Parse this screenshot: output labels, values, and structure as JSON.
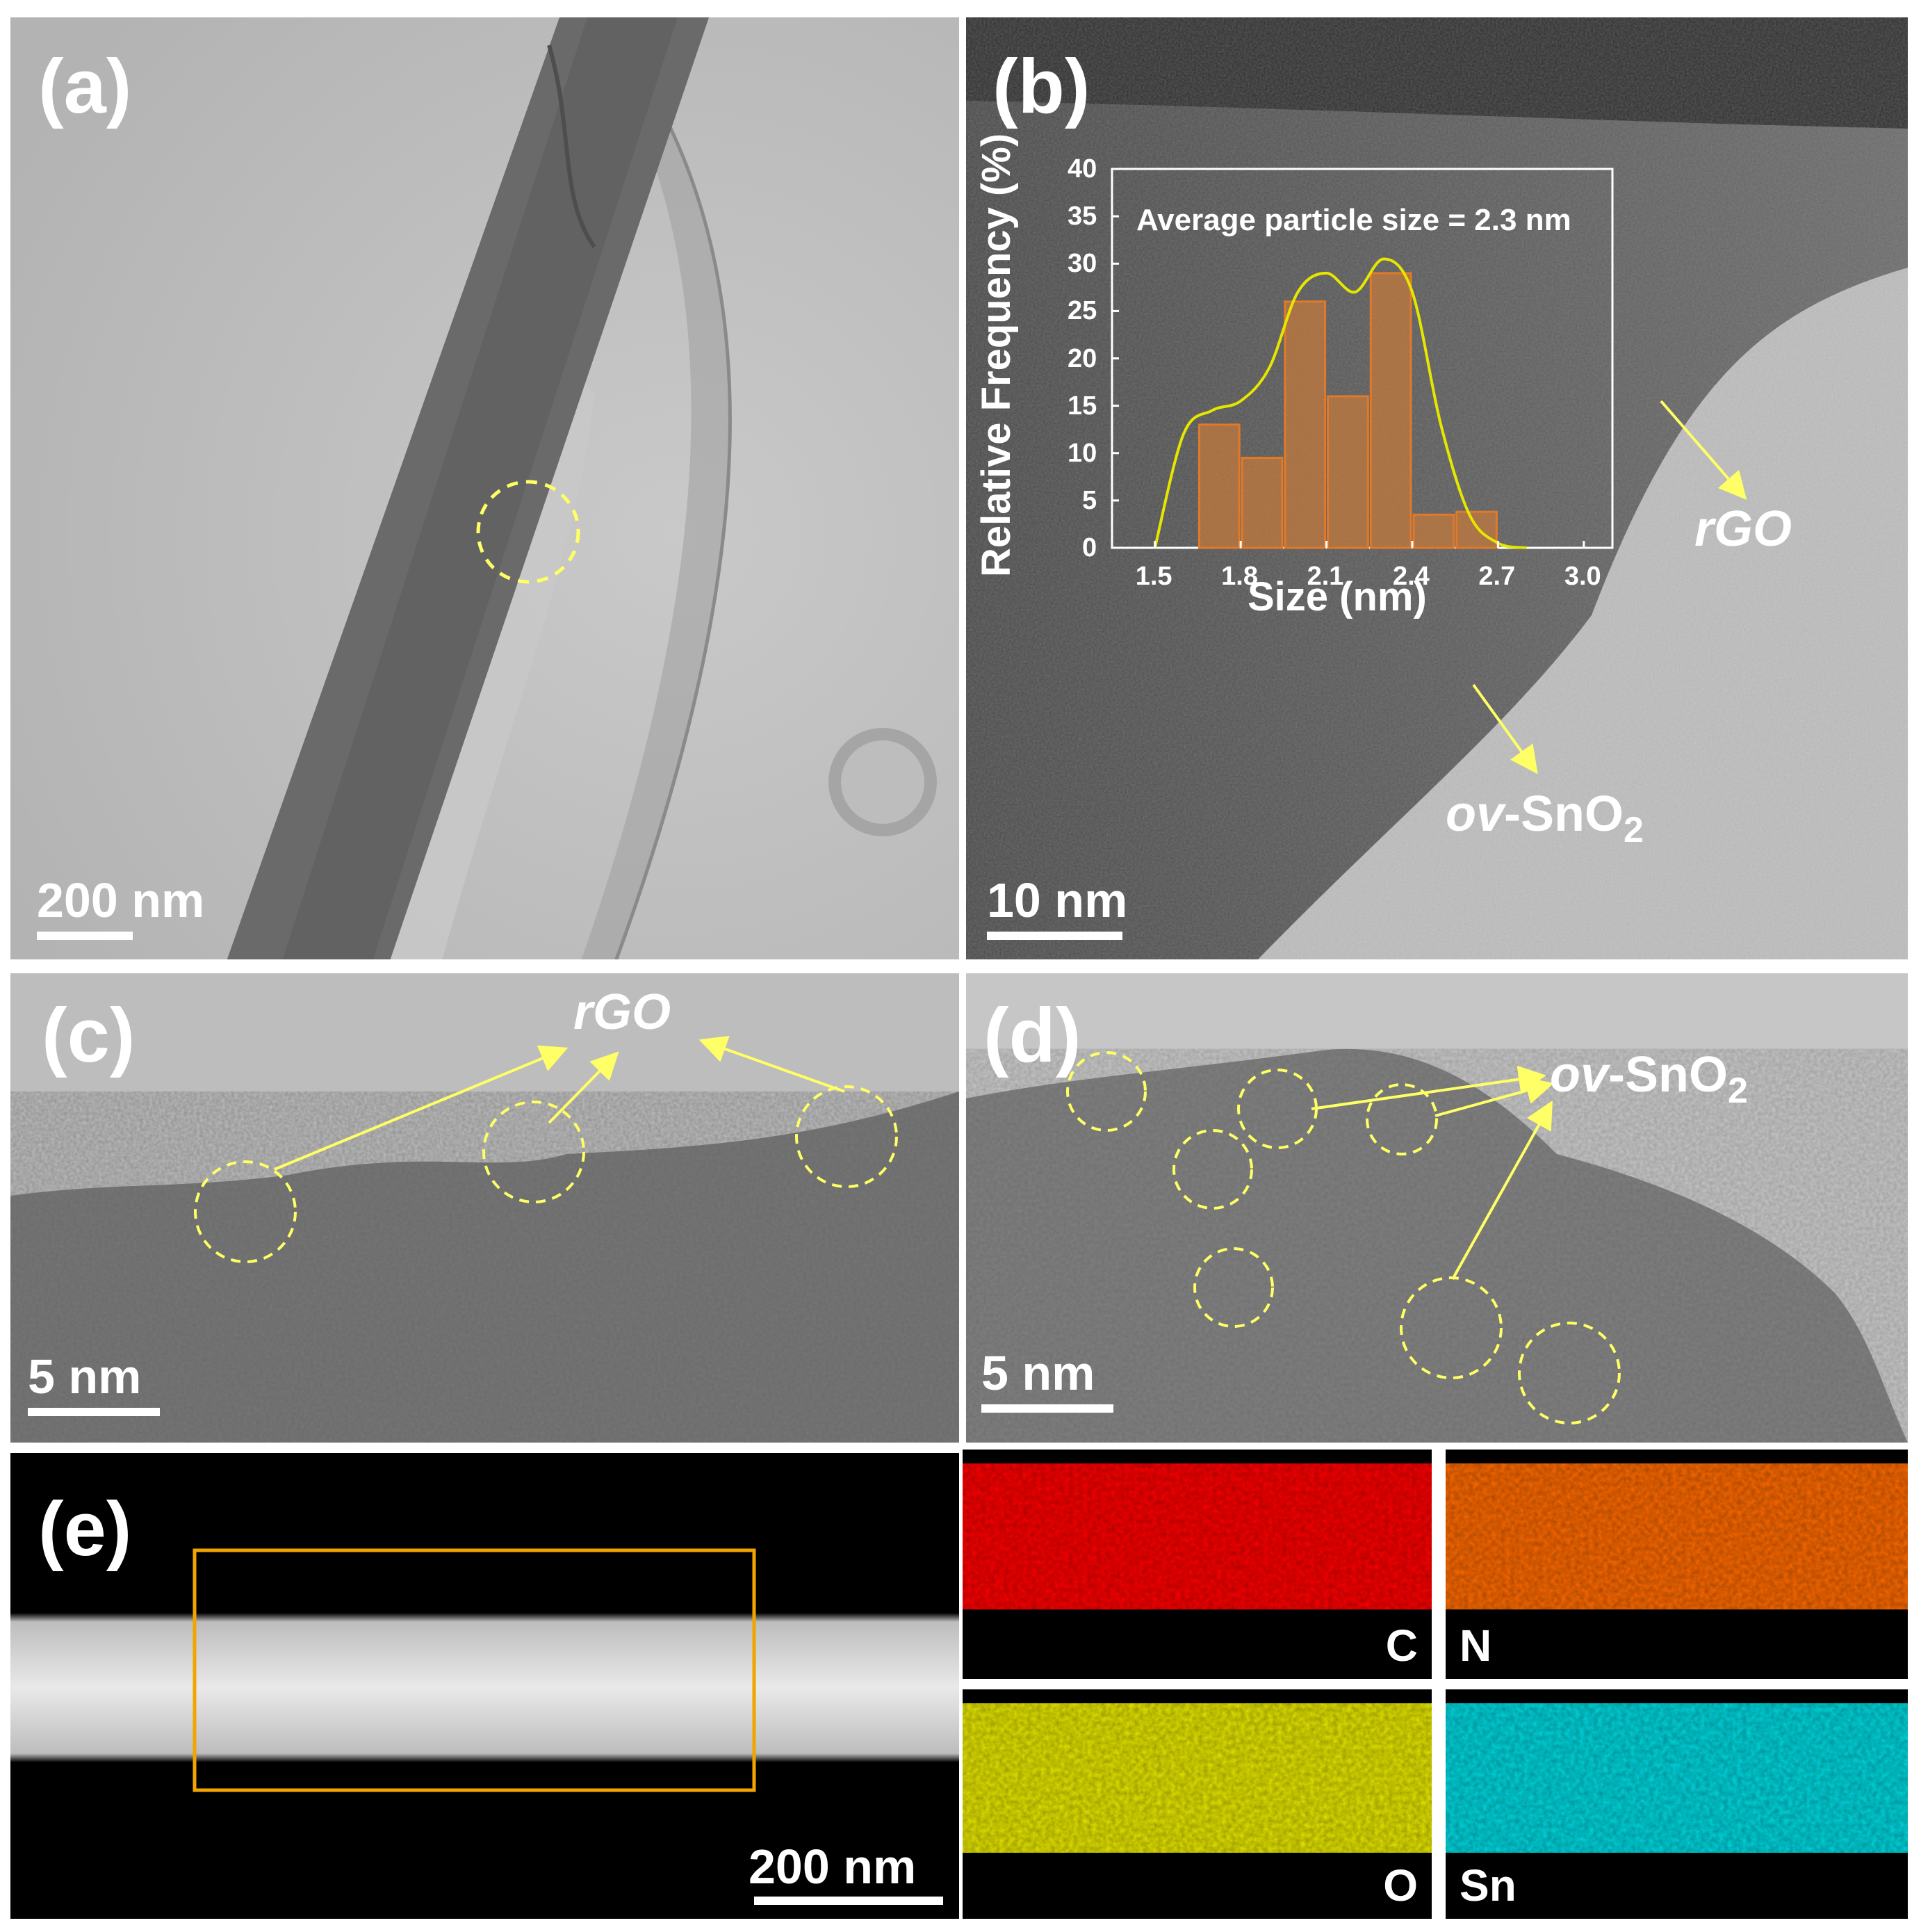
{
  "panels": {
    "a": {
      "label": "(a)",
      "scale_bar": "200 nm"
    },
    "b": {
      "label": "(b)",
      "scale_bar": "10 nm",
      "annotations": {
        "rgo": "rGO",
        "ov_prefix": "ov",
        "ov_main": "-SnO",
        "ov_sub": "2"
      }
    },
    "c": {
      "label": "(c)",
      "scale_bar": "5 nm",
      "annotations": {
        "rgo": "rGO"
      }
    },
    "d": {
      "label": "(d)",
      "scale_bar": "5 nm",
      "annotations": {
        "ov_prefix": "ov",
        "ov_main": "-SnO",
        "ov_sub": "2"
      }
    },
    "e": {
      "label": "(e)",
      "scale_bar": "200 nm",
      "maps": [
        {
          "element": "C",
          "color": "#ff0000"
        },
        {
          "element": "N",
          "color": "#ff6a00"
        },
        {
          "element": "O",
          "color": "#e6e600"
        },
        {
          "element": "Sn",
          "color": "#00d8e0"
        }
      ]
    }
  },
  "colors": {
    "annotation": "#ffff66",
    "selection_box": "#f2a400",
    "histogram_bar": "#c87a3a"
  },
  "chart_data": {
    "type": "bar",
    "title": "Average particle size = 2.3 nm",
    "xlabel": "Size (nm)",
    "ylabel": "Relative Frequency (%)",
    "x_ticks": [
      "1.5",
      "1.8",
      "2.1",
      "2.4",
      "2.7",
      "3.0"
    ],
    "y_ticks": [
      "0",
      "5",
      "10",
      "15",
      "20",
      "25",
      "30",
      "35",
      "40"
    ],
    "xlim": [
      1.35,
      3.1
    ],
    "ylim": [
      0,
      40
    ],
    "bin_width": 0.15,
    "bin_centers": [
      1.65,
      1.8,
      1.95,
      2.1,
      2.25,
      2.4,
      2.55,
      2.7,
      2.85
    ],
    "values": [
      0,
      13,
      9.5,
      26,
      16,
      29,
      3.5,
      3.8,
      0
    ],
    "bars": [
      {
        "x": 1.725,
        "y": 13
      },
      {
        "x": 1.875,
        "y": 9.5
      },
      {
        "x": 2.025,
        "y": 26
      },
      {
        "x": 2.175,
        "y": 16
      },
      {
        "x": 2.325,
        "y": 29
      },
      {
        "x": 2.475,
        "y": 3.5
      },
      {
        "x": 2.625,
        "y": 3.8
      }
    ],
    "fit_curve": {
      "x": [
        1.5,
        1.6,
        1.7,
        1.8,
        1.9,
        2.0,
        2.1,
        2.2,
        2.3,
        2.4,
        2.5,
        2.6,
        2.7,
        2.8
      ],
      "y": [
        0,
        12,
        14.5,
        15.5,
        19,
        27,
        29,
        27,
        30.5,
        27,
        13,
        3.5,
        0.5,
        0
      ]
    }
  }
}
